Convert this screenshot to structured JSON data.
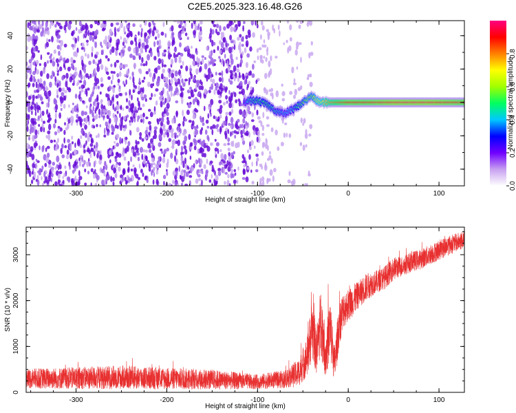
{
  "title": "C2E5.2025.323.16.48.G26",
  "colors": {
    "snr_line": "#e83030",
    "spec_dense": "#6a10d8",
    "spec_sparse": "#c9a8f0",
    "axis": "#000000"
  },
  "chart_data": [
    {
      "type": "heatmap",
      "xlabel": "Height of straight line (km)",
      "ylabel": "Frequency (Hz)",
      "xlim": [
        -355,
        128
      ],
      "ylim": [
        -50,
        49
      ],
      "xticks": [
        -300,
        -200,
        -100,
        0,
        100
      ],
      "yticks": [
        -40,
        -20,
        0,
        20,
        40
      ],
      "colorbar": {
        "label": "Normalized spectral amplitude",
        "range": [
          0,
          1
        ],
        "ticks": [
          "0.0",
          "0.2",
          "0.4",
          "0.6",
          "0.8"
        ],
        "colormap": [
          "#ffffff",
          "#c8a0f0",
          "#7000ff",
          "#0000ff",
          "#00c8ff",
          "#00ff60",
          "#a0ff00",
          "#ffff00",
          "#ff8000",
          "#ff0000",
          "#ff0080"
        ]
      },
      "noise_region_x": [
        -355,
        -60
      ],
      "signal_trace": {
        "x": [
          -115,
          -110,
          -100,
          -90,
          -80,
          -70,
          -65,
          -60,
          -55,
          -50,
          -45,
          -40,
          -35,
          -30,
          -25,
          -20,
          -10,
          0,
          20,
          50,
          90,
          128
        ],
        "freq": [
          0,
          1,
          1,
          -1,
          -5,
          -7,
          -5,
          -4,
          -2,
          0,
          2,
          4,
          1,
          0,
          0,
          0,
          0,
          0,
          0,
          0,
          0,
          0
        ],
        "amplitude": [
          0.3,
          0.45,
          0.5,
          0.5,
          0.45,
          0.4,
          0.4,
          0.45,
          0.5,
          0.55,
          0.6,
          0.6,
          0.65,
          0.7,
          0.75,
          0.8,
          0.85,
          0.9,
          0.9,
          0.95,
          0.95,
          0.9
        ]
      }
    },
    {
      "type": "line",
      "xlabel": "Height of straight line (km)",
      "ylabel": "SNR (10 * v/v)",
      "xlim": [
        -355,
        128
      ],
      "ylim": [
        0,
        3600
      ],
      "xticks": [
        -300,
        -200,
        -100,
        0,
        100
      ],
      "yticks": [
        0,
        1000,
        2000,
        3000
      ],
      "series": [
        {
          "x": [
            -355,
            -300,
            -250,
            -200,
            -150,
            -100,
            -70,
            -55,
            -45,
            -40,
            -35,
            -30,
            -25,
            -20,
            -15,
            -10,
            -5,
            0,
            5,
            10,
            15,
            20,
            30,
            40,
            50,
            60,
            70,
            80,
            90,
            100,
            110,
            120,
            128
          ],
          "y": [
            300,
            310,
            330,
            300,
            280,
            230,
            290,
            420,
            800,
            1400,
            900,
            1600,
            800,
            1400,
            600,
            1500,
            1800,
            1900,
            2000,
            2100,
            2200,
            2300,
            2400,
            2500,
            2700,
            2750,
            2850,
            2900,
            3000,
            3100,
            3200,
            3270,
            3330
          ],
          "noise": [
            220,
            240,
            260,
            240,
            220,
            160,
            200,
            300,
            450,
            700,
            500,
            800,
            500,
            700,
            400,
            500,
            400,
            350,
            350,
            300,
            300,
            300,
            250,
            250,
            250,
            220,
            220,
            220,
            220,
            220,
            220,
            200,
            200
          ]
        }
      ]
    }
  ]
}
